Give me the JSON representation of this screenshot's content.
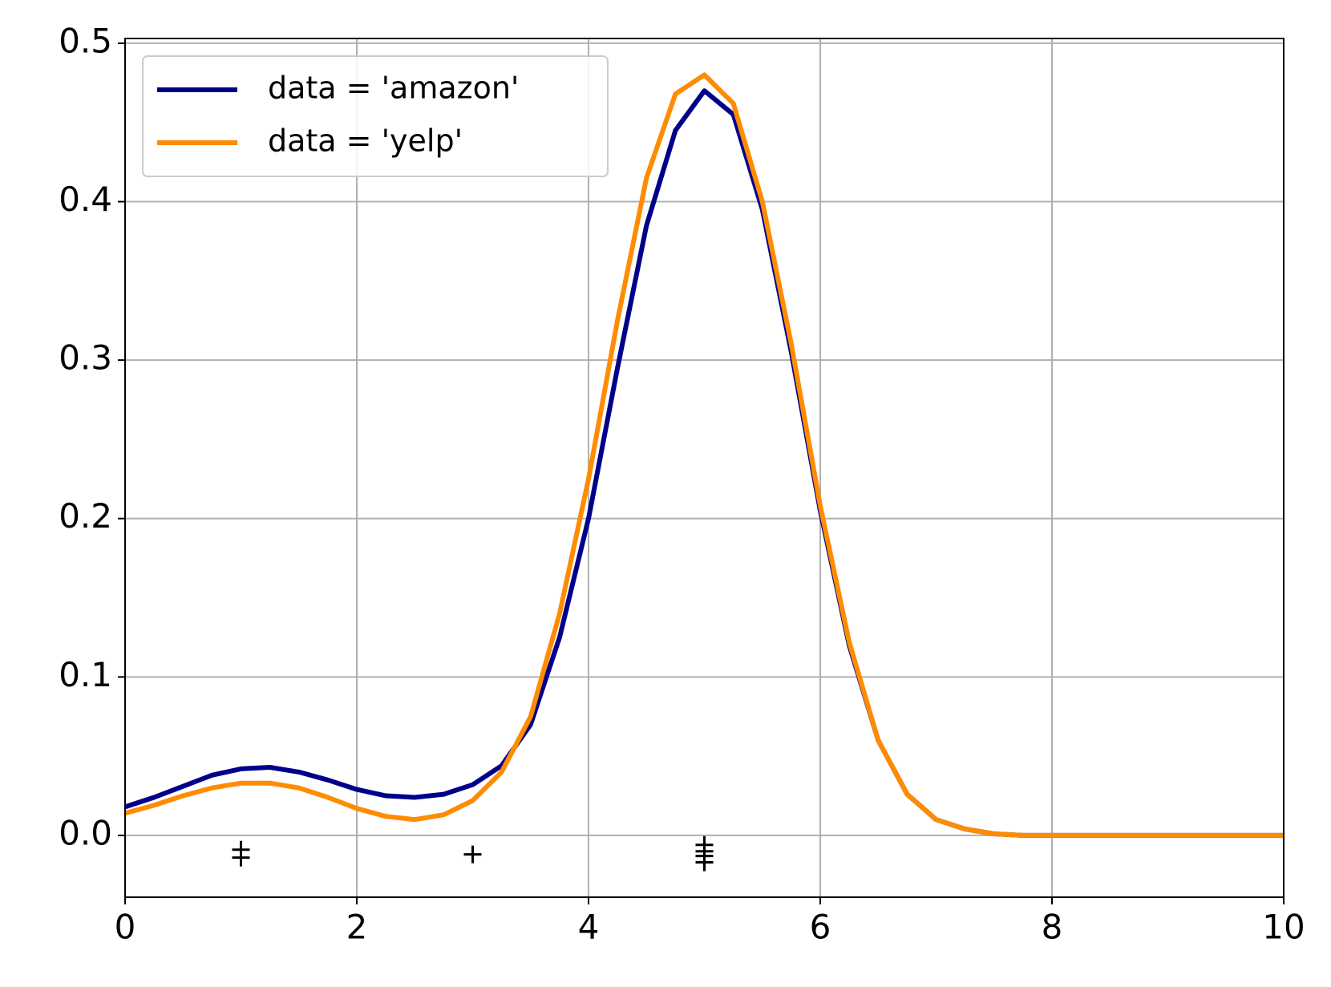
{
  "chart_data": {
    "type": "line",
    "x": [
      0,
      0.25,
      0.5,
      0.75,
      1,
      1.25,
      1.5,
      1.75,
      2,
      2.25,
      2.5,
      2.75,
      3,
      3.25,
      3.5,
      3.75,
      4,
      4.25,
      4.5,
      4.75,
      5,
      5.25,
      5.5,
      5.75,
      6,
      6.25,
      6.5,
      6.75,
      7,
      7.25,
      7.5,
      7.75,
      8,
      8.25,
      8.5,
      8.75,
      9,
      9.25,
      9.5,
      9.75,
      10
    ],
    "series": [
      {
        "name": "data = 'amazon'",
        "color": "#00008b",
        "values": [
          0.018,
          0.024,
          0.031,
          0.038,
          0.042,
          0.043,
          0.04,
          0.035,
          0.029,
          0.025,
          0.024,
          0.026,
          0.032,
          0.044,
          0.07,
          0.125,
          0.2,
          0.295,
          0.385,
          0.445,
          0.47,
          0.455,
          0.395,
          0.305,
          0.205,
          0.12,
          0.06,
          0.026,
          0.01,
          0.004,
          0.001,
          0,
          0,
          0,
          0,
          0,
          0,
          0,
          0,
          0,
          0
        ]
      },
      {
        "name": "data = 'yelp'",
        "color": "#ff8c00",
        "values": [
          0.014,
          0.019,
          0.025,
          0.03,
          0.033,
          0.033,
          0.03,
          0.024,
          0.017,
          0.012,
          0.01,
          0.013,
          0.022,
          0.04,
          0.075,
          0.14,
          0.225,
          0.325,
          0.415,
          0.468,
          0.48,
          0.462,
          0.4,
          0.31,
          0.208,
          0.122,
          0.06,
          0.026,
          0.01,
          0.004,
          0.001,
          0,
          0,
          0,
          0,
          0,
          0,
          0,
          0,
          0,
          0
        ]
      }
    ],
    "rug": {
      "x": [
        1,
        1,
        3,
        5,
        5,
        5,
        5
      ],
      "y": [
        -0.009,
        -0.014,
        -0.012,
        -0.006,
        -0.01,
        -0.013,
        -0.017
      ]
    },
    "xlim": [
      0,
      10
    ],
    "ylim": [
      -0.039,
      0.503
    ],
    "xticks": [
      0,
      2,
      4,
      6,
      8,
      10
    ],
    "yticks": [
      {
        "value": 0,
        "label": "0.0"
      },
      0.1,
      0.2,
      0.3,
      0.4,
      0.5
    ],
    "grid": true,
    "legend": "upper left"
  }
}
